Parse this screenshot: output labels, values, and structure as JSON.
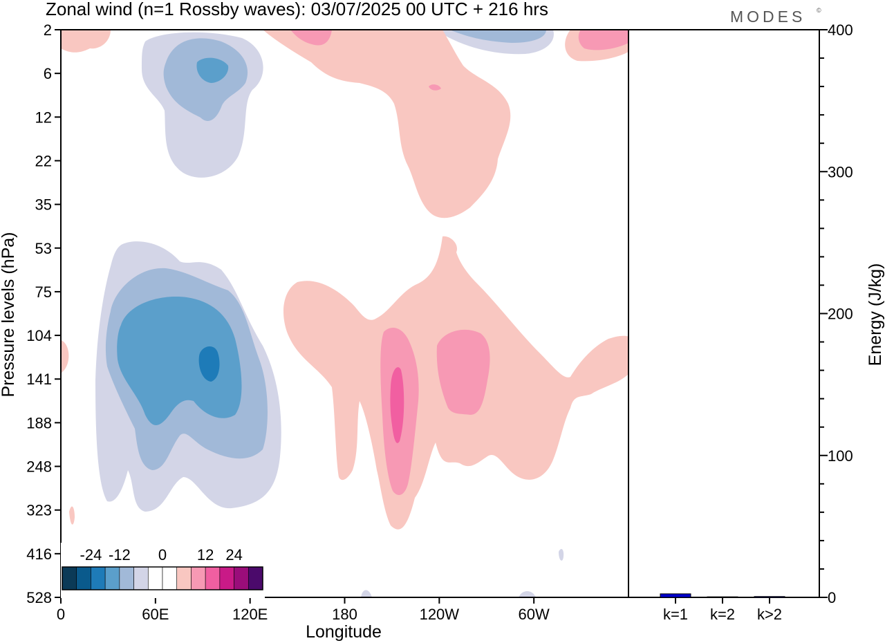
{
  "header": {
    "title": "Zonal wind (n=1 Rossby waves):  03/07/2025  00 UTC  + 216 hrs",
    "logo": "MODES",
    "logo_mark": "©"
  },
  "chart_data": [
    {
      "type": "heatmap",
      "title": "Zonal wind (n=1 Rossby waves):  03/07/2025  00 UTC  + 216 hrs",
      "xlabel": "Longitude",
      "ylabel": "Pressure levels (hPa)",
      "x_ticks": [
        "0",
        "60E",
        "120E",
        "180",
        "120W",
        "60W"
      ],
      "x_range_deg_east": [
        0,
        360
      ],
      "y_ticks": [
        "2",
        "6",
        "12",
        "22",
        "35",
        "53",
        "75",
        "104",
        "141",
        "188",
        "248",
        "323",
        "416",
        "528"
      ],
      "colorbar": {
        "tick_labels": [
          "-24",
          "-12",
          "0",
          "12",
          "24"
        ],
        "colors": [
          "#0b3a57",
          "#0a5a8c",
          "#1e7bb8",
          "#5b9fcb",
          "#a1b9d8",
          "#d3d5e7",
          "#ffffff",
          "#ffffff",
          "#f9c7c1",
          "#f799b4",
          "#f15fa1",
          "#c91a87",
          "#9a0d7a",
          "#4b0a6b"
        ]
      },
      "features": [
        {
          "name": "negative stratospheric cell",
          "lon_center": 90,
          "level": "6",
          "peak": -12
        },
        {
          "name": "positive stratospheric band",
          "lon_center": 225,
          "level": "12",
          "peak": 6
        },
        {
          "name": "negative tropospheric cell",
          "lon_center": 90,
          "level": "141",
          "peak": -18
        },
        {
          "name": "positive tropospheric cell",
          "lon_center": 200,
          "level": "141",
          "peak": 12
        },
        {
          "name": "positive tropospheric cell east",
          "lon_center": 255,
          "level": "141",
          "peak": 9
        }
      ]
    },
    {
      "type": "bar",
      "ylabel": "Energy (J/kg)",
      "categories": [
        "k=1",
        "k=2",
        "k>2"
      ],
      "values": [
        2.5,
        0.4,
        0.6
      ],
      "ylim": [
        0,
        400
      ],
      "y_ticks": [
        "0",
        "100",
        "200",
        "300",
        "400"
      ],
      "bar_color": "#0000cc"
    }
  ]
}
